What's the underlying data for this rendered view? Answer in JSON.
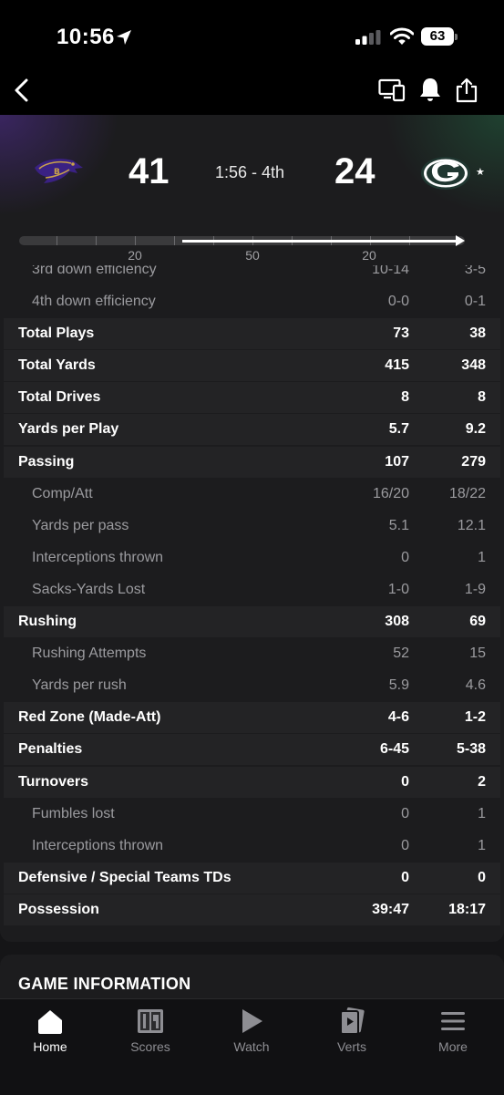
{
  "status_bar": {
    "time": "10:56",
    "battery": "63"
  },
  "game": {
    "away": {
      "score": "41"
    },
    "home": {
      "score": "24"
    },
    "clock": "1:56 - 4th"
  },
  "field": {
    "yard_labels": [
      "20",
      "50",
      "20"
    ]
  },
  "stats": {
    "partial_row": {
      "label": "3rd down efficiency",
      "away": "10-14",
      "home": "3-5"
    },
    "rows": [
      {
        "label": "4th down efficiency",
        "away": "0-0",
        "home": "0-1",
        "level": "sub"
      },
      {
        "label": "Total Plays",
        "away": "73",
        "home": "38",
        "level": "main"
      },
      {
        "label": "Total Yards",
        "away": "415",
        "home": "348",
        "level": "main"
      },
      {
        "label": "Total Drives",
        "away": "8",
        "home": "8",
        "level": "main"
      },
      {
        "label": "Yards per Play",
        "away": "5.7",
        "home": "9.2",
        "level": "main"
      },
      {
        "label": "Passing",
        "away": "107",
        "home": "279",
        "level": "main"
      },
      {
        "label": "Comp/Att",
        "away": "16/20",
        "home": "18/22",
        "level": "sub"
      },
      {
        "label": "Yards per pass",
        "away": "5.1",
        "home": "12.1",
        "level": "sub"
      },
      {
        "label": "Interceptions thrown",
        "away": "0",
        "home": "1",
        "level": "sub"
      },
      {
        "label": "Sacks-Yards Lost",
        "away": "1-0",
        "home": "1-9",
        "level": "sub"
      },
      {
        "label": "Rushing",
        "away": "308",
        "home": "69",
        "level": "main"
      },
      {
        "label": "Rushing Attempts",
        "away": "52",
        "home": "15",
        "level": "sub"
      },
      {
        "label": "Yards per rush",
        "away": "5.9",
        "home": "4.6",
        "level": "sub"
      },
      {
        "label": "Red Zone (Made-Att)",
        "away": "4-6",
        "home": "1-2",
        "level": "main"
      },
      {
        "label": "Penalties",
        "away": "6-45",
        "home": "5-38",
        "level": "main"
      },
      {
        "label": "Turnovers",
        "away": "0",
        "home": "2",
        "level": "main"
      },
      {
        "label": "Fumbles lost",
        "away": "0",
        "home": "1",
        "level": "sub"
      },
      {
        "label": "Interceptions thrown",
        "away": "0",
        "home": "1",
        "level": "sub"
      },
      {
        "label": "Defensive / Special Teams TDs",
        "away": "0",
        "home": "0",
        "level": "main"
      },
      {
        "label": "Possession",
        "away": "39:47",
        "home": "18:17",
        "level": "main"
      }
    ]
  },
  "game_information": {
    "title": "GAME INFORMATION"
  },
  "tabs": [
    {
      "label": "Home",
      "icon": "home-icon",
      "active": true
    },
    {
      "label": "Scores",
      "icon": "scores-icon",
      "active": false
    },
    {
      "label": "Watch",
      "icon": "play-icon",
      "active": false
    },
    {
      "label": "Verts",
      "icon": "verts-icon",
      "active": false
    },
    {
      "label": "More",
      "icon": "menu-icon",
      "active": false
    }
  ],
  "colors": {
    "background": "#151517",
    "card": "#1c1c1e",
    "row_main": "#232325",
    "text_sub": "#9b9b9f",
    "packers_green": "#203731",
    "packers_gold": "#FFB612",
    "ravens_purple": "#241773"
  }
}
